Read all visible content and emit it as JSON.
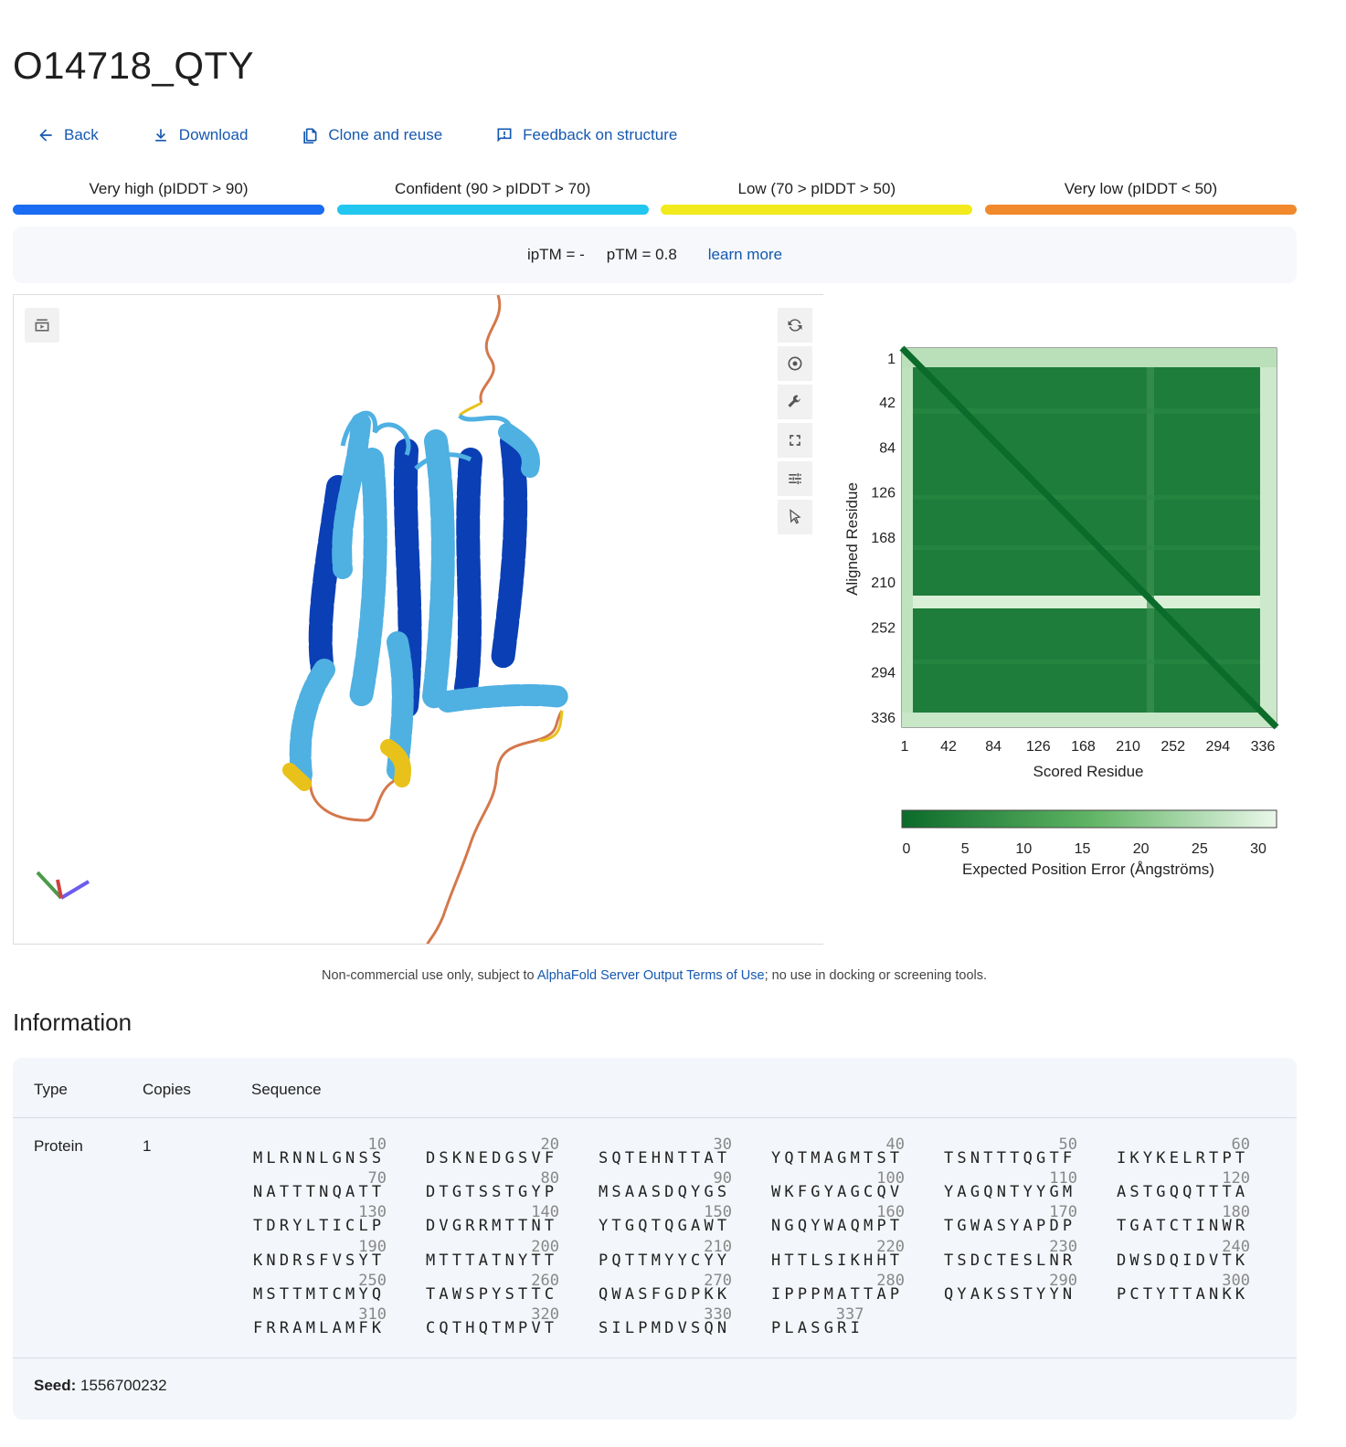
{
  "title": "O14718_QTY",
  "toolbar": {
    "back": "Back",
    "download": "Download",
    "clone": "Clone and reuse",
    "feedback": "Feedback on structure"
  },
  "legend": [
    {
      "label": "Very high (pIDDT > 90)",
      "color": "#1a6cf2"
    },
    {
      "label": "Confident (90 > pIDDT > 70)",
      "color": "#22c6ee"
    },
    {
      "label": "Low (70 > pIDDT > 50)",
      "color": "#f2ea1c"
    },
    {
      "label": "Very low (pIDDT < 50)",
      "color": "#f08a2c"
    }
  ],
  "metrics": {
    "iptm": "ipTM = -",
    "ptm": "pTM = 0.8",
    "learn_more": "learn more"
  },
  "viewer_icons": [
    "screenshot-icon",
    "spin-icon",
    "focus-icon",
    "wrench-icon",
    "expand-icon",
    "settings-icon",
    "pointer-icon"
  ],
  "pae": {
    "ylabel": "Aligned Residue",
    "xlabel": "Scored Residue",
    "ticks": [
      "1",
      "42",
      "84",
      "126",
      "168",
      "210",
      "252",
      "294",
      "336"
    ],
    "colorbar_ticks": [
      "0",
      "5",
      "10",
      "15",
      "20",
      "25",
      "30"
    ],
    "colorbar_label": "Expected Position Error (Ångströms)",
    "colors": {
      "low": "#0b6b2a",
      "high": "#eaf7ea"
    }
  },
  "terms": {
    "prefix": "Non-commercial use only, subject to ",
    "link": "AlphaFold Server Output Terms of Use",
    "suffix": "; no use in docking or screening tools."
  },
  "info": {
    "title": "Information",
    "headers": {
      "type": "Type",
      "copies": "Copies",
      "sequence": "Sequence"
    },
    "row": {
      "type": "Protein",
      "copies": "1"
    },
    "sequence": [
      [
        [
          "10",
          "MLRNNLGNSS"
        ],
        [
          "20",
          "DSKNEDGSVF"
        ],
        [
          "30",
          "SQTEHNTTAT"
        ],
        [
          "40",
          "YQTMAGMTST"
        ],
        [
          "50",
          "TSNTTTQGTF"
        ],
        [
          "60",
          "IKYKELRTPT"
        ]
      ],
      [
        [
          "70",
          "NATTTNQATT"
        ],
        [
          "80",
          "DTGTSSTGYP"
        ],
        [
          "90",
          "MSAASDQYGS"
        ],
        [
          "100",
          "WKFGYAGCQV"
        ],
        [
          "110",
          "YAGQNTYYGM"
        ],
        [
          "120",
          "ASTGQQTTTA"
        ]
      ],
      [
        [
          "130",
          "TDRYLTICLP"
        ],
        [
          "140",
          "DVGRRMTTNT"
        ],
        [
          "150",
          "YTGQTQGAWT"
        ],
        [
          "160",
          "NGQYWAQMPT"
        ],
        [
          "170",
          "TGWASYAPDP"
        ],
        [
          "180",
          "TGATCTINWR"
        ]
      ],
      [
        [
          "190",
          "KNDRSFVSYT"
        ],
        [
          "200",
          "MTTTATNYTT"
        ],
        [
          "210",
          "PQTTMYYCYY"
        ],
        [
          "220",
          "HTTLSIKHHT"
        ],
        [
          "230",
          "TSDCTESLNR"
        ],
        [
          "240",
          "DWSDQIDVTK"
        ]
      ],
      [
        [
          "250",
          "MSTTMTCMYQ"
        ],
        [
          "260",
          "TAWSPYSTTC"
        ],
        [
          "270",
          "QWASFGDPKK"
        ],
        [
          "280",
          "IPPPMATTAP"
        ],
        [
          "290",
          "QYAKSSTYYN"
        ],
        [
          "300",
          "PCTYTTANKK"
        ]
      ],
      [
        [
          "310",
          "FRRAMLAMFK"
        ],
        [
          "320",
          "CQTHQTMPVT"
        ],
        [
          "330",
          "SILPMDVSQN"
        ],
        [
          "337",
          "PLASGRI"
        ]
      ]
    ],
    "seed_label": "Seed:",
    "seed_value": "1556700232"
  }
}
